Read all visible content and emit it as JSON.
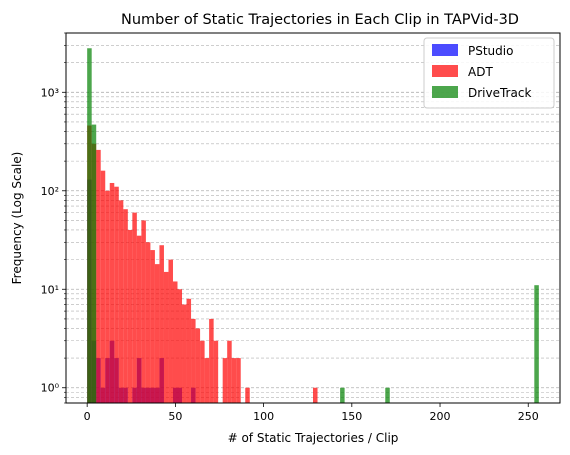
{
  "chart_data": {
    "type": "histogram",
    "title": "Number of Static Trajectories in Each Clip in TAPVid-3D",
    "xlabel": "# of Static Trajectories / Clip",
    "ylabel": "Frequency (Log Scale)",
    "xlim": [
      -12,
      268
    ],
    "ylim": [
      0.7,
      4000
    ],
    "yscale": "log",
    "bin_width": 2.56,
    "grid": {
      "y_major": true,
      "y_minor": true,
      "x": false
    },
    "legend": {
      "position": "top-right"
    },
    "x_ticks": [
      0,
      50,
      100,
      150,
      200,
      250
    ],
    "y_ticks": [
      {
        "value": 1,
        "label": "10⁰"
      },
      {
        "value": 10,
        "label": "10¹"
      },
      {
        "value": 100,
        "label": "10²"
      },
      {
        "value": 1000,
        "label": "10³"
      }
    ],
    "series": [
      {
        "name": "PStudio",
        "color": "#0000ff",
        "bins": [
          {
            "x": 0,
            "count": 130
          },
          {
            "x": 2.56,
            "count": 3
          },
          {
            "x": 5.12,
            "count": 2
          },
          {
            "x": 7.68,
            "count": 1
          },
          {
            "x": 10.24,
            "count": 2
          },
          {
            "x": 12.8,
            "count": 3
          },
          {
            "x": 15.36,
            "count": 2
          },
          {
            "x": 17.92,
            "count": 1
          },
          {
            "x": 20.48,
            "count": 1
          },
          {
            "x": 25.6,
            "count": 1
          },
          {
            "x": 28.16,
            "count": 2
          },
          {
            "x": 30.72,
            "count": 1
          },
          {
            "x": 33.28,
            "count": 1
          },
          {
            "x": 35.84,
            "count": 1
          },
          {
            "x": 38.4,
            "count": 1
          },
          {
            "x": 40.96,
            "count": 2
          },
          {
            "x": 48.64,
            "count": 1
          },
          {
            "x": 51.2,
            "count": 1
          },
          {
            "x": 58.88,
            "count": 1
          }
        ]
      },
      {
        "name": "ADT",
        "color": "#ff0000",
        "bins": [
          {
            "x": 0,
            "count": 460
          },
          {
            "x": 2.56,
            "count": 300
          },
          {
            "x": 5.12,
            "count": 260
          },
          {
            "x": 7.68,
            "count": 160
          },
          {
            "x": 10.24,
            "count": 100
          },
          {
            "x": 12.8,
            "count": 120
          },
          {
            "x": 15.36,
            "count": 110
          },
          {
            "x": 17.92,
            "count": 80
          },
          {
            "x": 20.48,
            "count": 65
          },
          {
            "x": 23.04,
            "count": 40
          },
          {
            "x": 25.6,
            "count": 60
          },
          {
            "x": 28.16,
            "count": 35
          },
          {
            "x": 30.72,
            "count": 50
          },
          {
            "x": 33.28,
            "count": 30
          },
          {
            "x": 35.84,
            "count": 25
          },
          {
            "x": 38.4,
            "count": 18
          },
          {
            "x": 40.96,
            "count": 28
          },
          {
            "x": 43.52,
            "count": 15
          },
          {
            "x": 46.08,
            "count": 20
          },
          {
            "x": 48.64,
            "count": 12
          },
          {
            "x": 51.2,
            "count": 10
          },
          {
            "x": 53.76,
            "count": 7
          },
          {
            "x": 56.32,
            "count": 8
          },
          {
            "x": 58.88,
            "count": 5
          },
          {
            "x": 61.44,
            "count": 4
          },
          {
            "x": 64,
            "count": 3
          },
          {
            "x": 66.56,
            "count": 2
          },
          {
            "x": 69.12,
            "count": 5
          },
          {
            "x": 71.68,
            "count": 3
          },
          {
            "x": 76.8,
            "count": 2
          },
          {
            "x": 79.36,
            "count": 3
          },
          {
            "x": 81.92,
            "count": 2
          },
          {
            "x": 84.48,
            "count": 2
          },
          {
            "x": 89.6,
            "count": 1
          },
          {
            "x": 128,
            "count": 1
          }
        ]
      },
      {
        "name": "DriveTrack",
        "color": "#008000",
        "bins": [
          {
            "x": 0,
            "count": 2800
          },
          {
            "x": 2.56,
            "count": 470
          },
          {
            "x": 143.36,
            "count": 1
          },
          {
            "x": 168.96,
            "count": 1
          },
          {
            "x": 253.44,
            "count": 11
          }
        ]
      }
    ]
  }
}
